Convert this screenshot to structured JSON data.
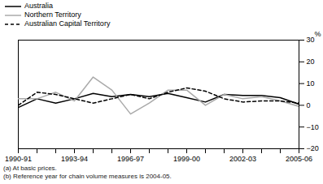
{
  "chart_data": {
    "type": "line",
    "categories": [
      "1990-91",
      null,
      null,
      "1993-94",
      null,
      null,
      "1996-97",
      null,
      null,
      "1999-00",
      null,
      null,
      "2002-03",
      null,
      null,
      "2005-06"
    ],
    "series": [
      {
        "name": "Australia",
        "color": "#000000",
        "line_style": "solid",
        "values": [
          -1,
          3,
          1,
          3,
          5.5,
          4,
          5,
          4,
          5.5,
          3.5,
          1.5,
          5,
          4.5,
          4.5,
          3.5,
          0.5
        ]
      },
      {
        "name": "Northern Territory",
        "color": "#aaaaaa",
        "line_style": "solid",
        "values": [
          3,
          3,
          6,
          2,
          13,
          7,
          -4,
          1,
          7,
          7,
          0,
          5,
          3,
          4,
          2,
          -0.5
        ]
      },
      {
        "name": "Australian Capital Territory",
        "color": "#000000",
        "line_style": "dashed",
        "values": [
          0,
          6,
          5,
          3,
          1,
          3,
          5,
          3,
          6,
          8,
          6.5,
          3,
          1.5,
          2,
          2,
          1
        ]
      }
    ],
    "y_label": "%",
    "ylim": [
      -20,
      30
    ],
    "yticks": [
      -20,
      -10,
      0,
      10,
      20,
      30
    ],
    "legend": "top-left",
    "notes": [
      "(a) At basic prices.",
      "(b) Reference year for chain volume measures is 2004-05."
    ]
  }
}
